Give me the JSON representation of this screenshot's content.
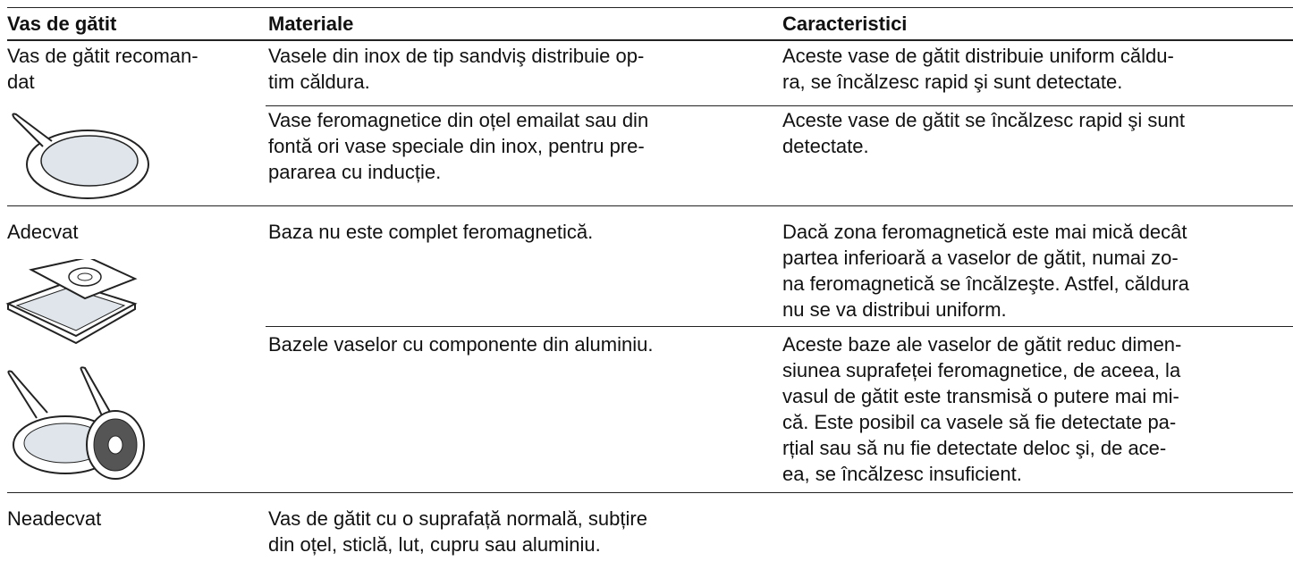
{
  "table": {
    "header": [
      "Vas de gătit",
      "Materiale",
      "Caracteristici"
    ],
    "groups": [
      {
        "label": [
          "Vas de gătit recoman-",
          "dat"
        ],
        "rows": [
          {
            "materials": [
              "Vasele din inox de tip sandviş distribuie op-",
              "tim căldura."
            ],
            "characteristics": [
              "Aceste vase de gătit distribuie uniform căldu-",
              "ra, se încălzesc rapid şi sunt detectate."
            ]
          },
          {
            "materials": [
              "Vase feromagnetice din oțel emailat sau din",
              "fontă ori vase speciale din inox, pentru pre-",
              "pararea cu inducție."
            ],
            "characteristics": [
              "Aceste vase de gătit se încălzesc rapid şi sunt",
              "detectate."
            ]
          }
        ]
      },
      {
        "label": [
          "Adecvat"
        ],
        "rows": [
          {
            "materials": [
              "Baza nu este complet feromagnetică."
            ],
            "characteristics": [
              "Dacă zona feromagnetică este mai mică decât",
              "partea inferioară a vaselor de gătit, numai zo-",
              "na feromagnetică se încălzeşte. Astfel, căldura",
              "nu se va distribui uniform."
            ]
          },
          {
            "materials": [
              "Bazele vaselor cu componente din aluminiu."
            ],
            "characteristics": [
              "Aceste baze ale vaselor de gătit reduc dimen-",
              "siunea suprafeței feromagnetice, de aceea, la",
              "vasul de gătit este transmisă o putere mai mi-",
              "că. Este posibil ca vasele să fie detectate pa-",
              "rțial sau să nu fie detectate deloc şi, de ace-",
              "ea, se încălzesc insuficient."
            ]
          }
        ]
      },
      {
        "label": [
          "Neadecvat"
        ],
        "rows": [
          {
            "materials": [
              "Vas de gătit cu o suprafață normală, subțire",
              "din oțel, sticlă, lut, cupru sau aluminiu."
            ]
          }
        ]
      }
    ]
  }
}
